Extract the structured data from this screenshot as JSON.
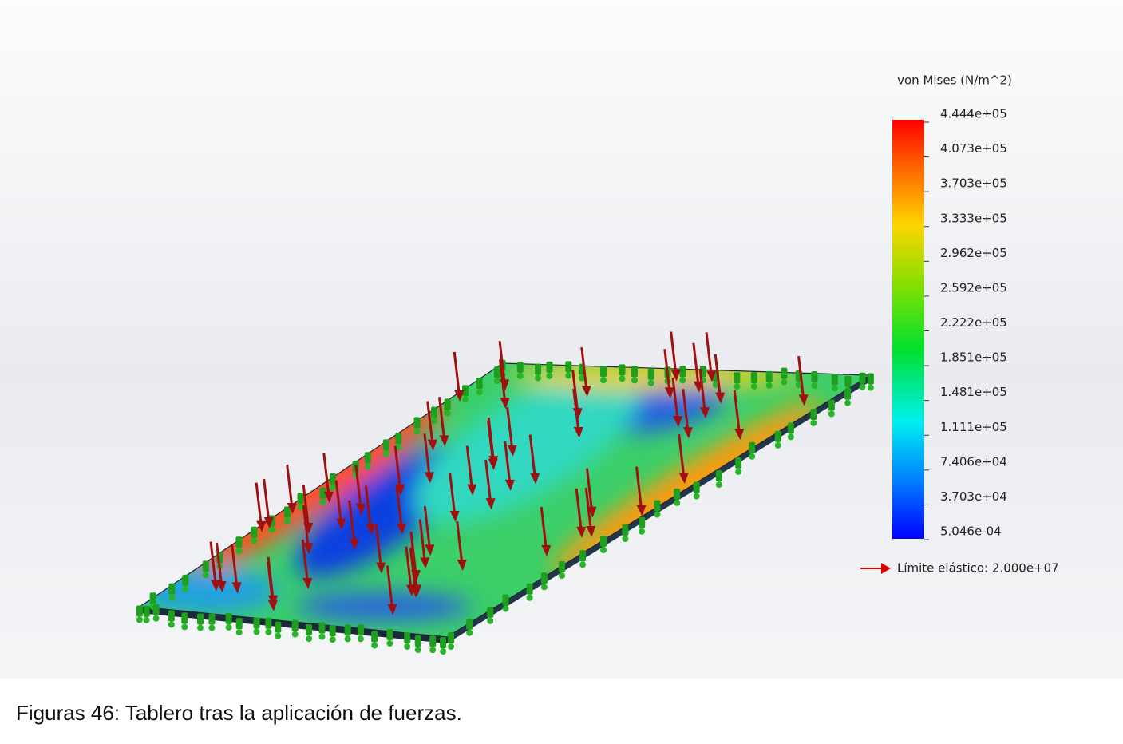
{
  "legend": {
    "title": "von Mises (N/m^2)",
    "ticks": [
      "4.444e+05",
      "4.073e+05",
      "3.703e+05",
      "3.333e+05",
      "2.962e+05",
      "2.592e+05",
      "2.222e+05",
      "1.851e+05",
      "1.481e+05",
      "1.111e+05",
      "7.406e+04",
      "3.703e+04",
      "5.046e-04"
    ],
    "yield_label": "Límite elástico: 2.000e+07"
  },
  "caption": "Figuras 46: Tablero tras la aplicación de fuerzas."
}
